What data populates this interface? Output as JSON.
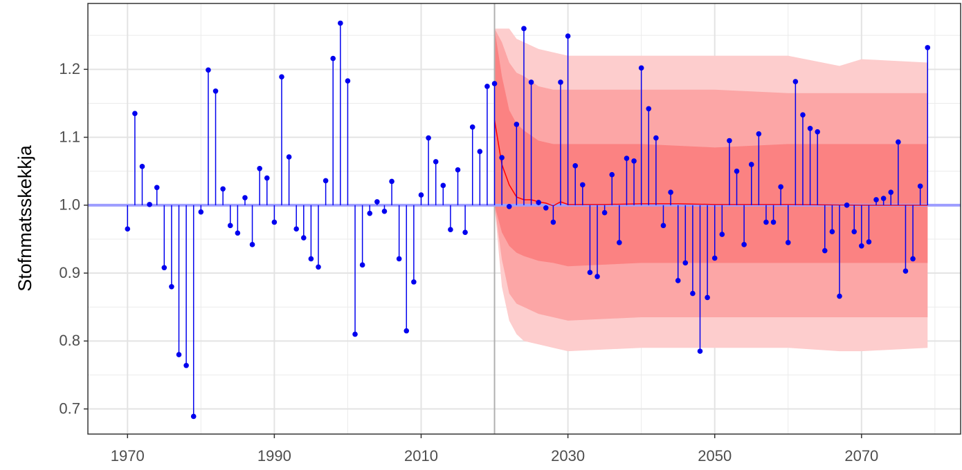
{
  "chart_data": {
    "type": "lollipop",
    "y_label": "Stofnmatsskekkja",
    "xlim": [
      1964.6,
      2083.5
    ],
    "ylim": [
      0.663,
      1.297
    ],
    "xticks": [
      1970,
      1990,
      2010,
      2030,
      2050,
      2070
    ],
    "x_minor_ticks": [
      1980,
      2000,
      2020,
      2040,
      2060,
      2080
    ],
    "yticks": [
      {
        "value": 0.7,
        "label": "0.7"
      },
      {
        "value": 0.8,
        "label": "0.8"
      },
      {
        "value": 0.9,
        "label": "0.9"
      },
      {
        "value": 1.0,
        "label": "1.0"
      },
      {
        "value": 1.1,
        "label": "1.1"
      },
      {
        "value": 1.2,
        "label": "1.2"
      }
    ],
    "y_minor_ticks": [
      0.75,
      0.85,
      0.95,
      1.05,
      1.15,
      1.25
    ],
    "grid": true,
    "baseline": 1.0,
    "baseline_color": "#9d9dff",
    "vline": 2020,
    "vline_color": "#b0b0b0",
    "color": "#0000ee",
    "x": [
      1970,
      1971,
      1972,
      1973,
      1974,
      1975,
      1976,
      1977,
      1978,
      1979,
      1980,
      1981,
      1982,
      1983,
      1984,
      1985,
      1986,
      1987,
      1988,
      1989,
      1990,
      1991,
      1992,
      1993,
      1994,
      1995,
      1996,
      1997,
      1998,
      1999,
      2000,
      2001,
      2002,
      2003,
      2004,
      2005,
      2006,
      2007,
      2008,
      2009,
      2010,
      2011,
      2012,
      2013,
      2014,
      2015,
      2016,
      2017,
      2018,
      2019,
      2020,
      2021,
      2022,
      2023,
      2024,
      2025,
      2026,
      2027,
      2028,
      2029,
      2030,
      2031,
      2032,
      2033,
      2034,
      2035,
      2036,
      2037,
      2038,
      2039,
      2040,
      2041,
      2042,
      2043,
      2044,
      2045,
      2046,
      2047,
      2048,
      2049,
      2050,
      2051,
      2052,
      2053,
      2054,
      2055,
      2056,
      2057,
      2058,
      2059,
      2060,
      2061,
      2062,
      2063,
      2064,
      2065,
      2066,
      2067,
      2068,
      2069,
      2070,
      2071,
      2072,
      2073,
      2074,
      2075,
      2076,
      2077,
      2078,
      2079
    ],
    "values": [
      0.965,
      1.135,
      1.057,
      1.001,
      1.026,
      0.908,
      0.88,
      0.78,
      0.764,
      0.689,
      0.99,
      1.199,
      1.168,
      1.024,
      0.97,
      0.959,
      1.011,
      0.942,
      1.054,
      1.04,
      0.975,
      1.189,
      1.071,
      0.965,
      0.952,
      0.921,
      0.909,
      1.036,
      1.216,
      1.268,
      1.183,
      0.81,
      0.912,
      0.988,
      1.005,
      0.991,
      1.035,
      0.921,
      0.815,
      0.887,
      1.015,
      1.099,
      1.064,
      1.029,
      0.964,
      1.052,
      0.96,
      1.115,
      1.079,
      1.175,
      1.179,
      1.07,
      0.998,
      1.119,
      1.26,
      1.181,
      1.004,
      0.996,
      0.975,
      1.181,
      1.249,
      1.058,
      1.03,
      0.901,
      0.895,
      0.989,
      1.045,
      0.945,
      1.069,
      1.065,
      1.202,
      1.142,
      1.099,
      0.97,
      1.019,
      0.889,
      0.915,
      0.87,
      0.785,
      0.864,
      0.922,
      0.957,
      1.095,
      1.05,
      0.942,
      1.06,
      1.105,
      0.975,
      0.975,
      1.027,
      0.945,
      1.182,
      1.133,
      1.113,
      1.108,
      0.933,
      0.961,
      0.866,
      1.0,
      0.961,
      0.94,
      0.946,
      1.008,
      1.01,
      1.019,
      1.093,
      0.903,
      0.921,
      1.028,
      1.232
    ],
    "band_x": [
      2020,
      2021,
      2022,
      2023,
      2024,
      2026,
      2028,
      2030,
      2040,
      2050,
      2060,
      2067,
      2070,
      2079
    ],
    "bands": [
      {
        "color": "#fdcdcd",
        "upper": [
          1.26,
          1.26,
          1.26,
          1.245,
          1.24,
          1.23,
          1.225,
          1.22,
          1.22,
          1.22,
          1.22,
          1.205,
          1.215,
          1.21
        ],
        "lower": [
          1.0,
          0.88,
          0.83,
          0.81,
          0.8,
          0.795,
          0.79,
          0.785,
          0.79,
          0.79,
          0.79,
          0.785,
          0.785,
          0.79
        ]
      },
      {
        "color": "#fca6a6",
        "upper": [
          1.26,
          1.24,
          1.21,
          1.195,
          1.19,
          1.175,
          1.17,
          1.17,
          1.17,
          1.17,
          1.165,
          1.165,
          1.165,
          1.165
        ],
        "lower": [
          1.0,
          0.92,
          0.87,
          0.855,
          0.85,
          0.84,
          0.835,
          0.83,
          0.835,
          0.835,
          0.835,
          0.835,
          0.835,
          0.835
        ]
      },
      {
        "color": "#fb8282",
        "upper": [
          1.26,
          1.19,
          1.14,
          1.12,
          1.11,
          1.095,
          1.09,
          1.09,
          1.09,
          1.085,
          1.09,
          1.09,
          1.09,
          1.09
        ],
        "lower": [
          1.0,
          0.96,
          0.94,
          0.93,
          0.925,
          0.918,
          0.915,
          0.91,
          0.915,
          0.915,
          0.915,
          0.915,
          0.915,
          0.915
        ]
      }
    ],
    "median": {
      "color": "#ff0000",
      "x": [
        2020,
        2021,
        2022,
        2023,
        2024,
        2025,
        2026,
        2027,
        2028,
        2029,
        2030,
        2035,
        2040,
        2045,
        2050,
        2060,
        2070,
        2079
      ],
      "values": [
        1.125,
        1.06,
        1.03,
        1.012,
        1.008,
        1.008,
        1.005,
        1.003,
        0.999,
        1.005,
        1.001,
        1.001,
        1.002,
        1.002,
        1.001,
        1.001,
        1.0,
        1.0
      ]
    }
  }
}
